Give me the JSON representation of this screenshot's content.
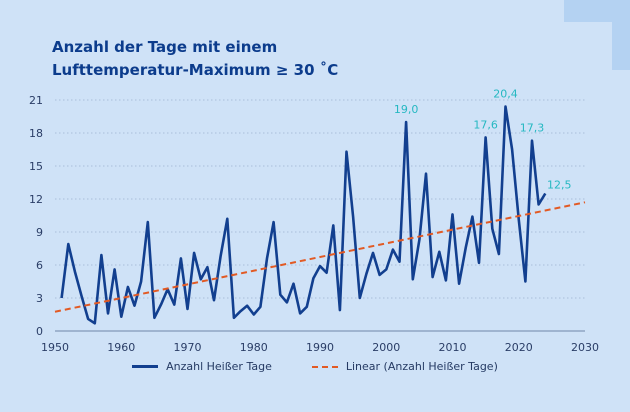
{
  "colors": {
    "series": "#123f8f",
    "trend": "#e25a24",
    "annotation": "#26b8c2",
    "grid": "#9fb3cf"
  },
  "chart_data": {
    "type": "line",
    "title_line1": "Anzahl der Tage mit einem",
    "title_line2": "Lufttemperatur-Maximum ≥ 30 ˚C",
    "xlim": [
      1950,
      2030
    ],
    "ylim": [
      0,
      21
    ],
    "x_ticks": [
      "1950",
      "1960",
      "1970",
      "1980",
      "1990",
      "2000",
      "2010",
      "2020",
      "2030"
    ],
    "y_ticks": [
      "0",
      "3",
      "6",
      "9",
      "12",
      "15",
      "18",
      "21"
    ],
    "grid": "horizontal",
    "legend_position": "bottom",
    "series": [
      {
        "name": "Anzahl Heißer Tage",
        "x": [
          1951,
          1952,
          1953,
          1954,
          1955,
          1956,
          1957,
          1958,
          1959,
          1960,
          1961,
          1962,
          1963,
          1964,
          1965,
          1966,
          1967,
          1968,
          1969,
          1970,
          1971,
          1972,
          1973,
          1974,
          1975,
          1976,
          1977,
          1978,
          1979,
          1980,
          1981,
          1982,
          1983,
          1984,
          1985,
          1986,
          1987,
          1988,
          1989,
          1990,
          1991,
          1992,
          1993,
          1994,
          1995,
          1996,
          1997,
          1998,
          1999,
          2000,
          2001,
          2002,
          2003,
          2004,
          2005,
          2006,
          2007,
          2008,
          2009,
          2010,
          2011,
          2012,
          2013,
          2014,
          2015,
          2016,
          2017,
          2018,
          2019,
          2020,
          2021,
          2022,
          2023,
          2024
        ],
        "values": [
          3.0,
          7.9,
          5.4,
          3.2,
          1.1,
          0.7,
          6.9,
          1.6,
          5.6,
          1.3,
          4.0,
          2.3,
          4.5,
          9.9,
          1.2,
          2.4,
          3.8,
          2.4,
          6.6,
          2.0,
          7.1,
          4.7,
          5.8,
          2.8,
          6.8,
          10.2,
          1.2,
          1.8,
          2.3,
          1.5,
          2.2,
          6.6,
          9.9,
          3.3,
          2.6,
          4.3,
          1.6,
          2.2,
          4.8,
          5.9,
          5.3,
          9.6,
          1.9,
          16.3,
          10.4,
          3.0,
          5.2,
          7.1,
          5.1,
          5.6,
          7.4,
          6.3,
          19.0,
          4.7,
          8.3,
          14.3,
          4.9,
          7.2,
          4.6,
          10.6,
          4.3,
          7.6,
          10.4,
          6.2,
          17.6,
          9.3,
          7.0,
          20.4,
          16.5,
          10.1,
          4.5,
          17.3,
          11.5,
          12.5
        ]
      },
      {
        "name": "Linear (Anzahl Heißer Tage)",
        "x": [
          1950,
          2030
        ],
        "values": [
          1.75,
          11.7
        ],
        "style": "dashed"
      }
    ],
    "annotations": [
      {
        "x": 2003,
        "y": 19.0,
        "label": "19,0"
      },
      {
        "x": 2015,
        "y": 17.6,
        "label": "17,6"
      },
      {
        "x": 2018,
        "y": 20.4,
        "label": "20,4"
      },
      {
        "x": 2022,
        "y": 17.3,
        "label": "17,3"
      },
      {
        "x": 2024,
        "y": 12.5,
        "label": "12,5"
      }
    ]
  }
}
